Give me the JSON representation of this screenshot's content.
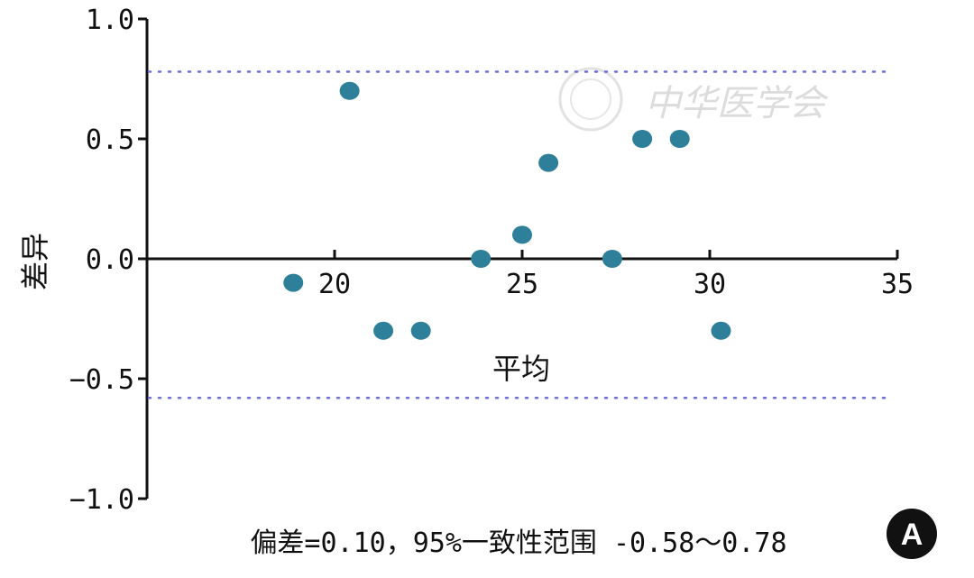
{
  "chart_data": {
    "type": "scatter",
    "title": "",
    "xlabel": "平均",
    "ylabel": "差异",
    "xlim": [
      15,
      35
    ],
    "ylim": [
      -1.0,
      1.0
    ],
    "x_ticks": [
      20,
      25,
      30,
      35
    ],
    "y_ticks": [
      1.0,
      0.5,
      0.0,
      -0.5,
      -1.0
    ],
    "x_tick_labels": [
      "20",
      "25",
      "30",
      "35"
    ],
    "y_tick_labels": [
      "1.0",
      "0.5",
      "0.0",
      "−0.5",
      "−1.0"
    ],
    "grid": false,
    "points": [
      {
        "x": 18.9,
        "y": -0.1
      },
      {
        "x": 20.4,
        "y": 0.7
      },
      {
        "x": 21.3,
        "y": -0.3
      },
      {
        "x": 22.3,
        "y": -0.3
      },
      {
        "x": 23.9,
        "y": 0.0
      },
      {
        "x": 25.0,
        "y": 0.1
      },
      {
        "x": 25.7,
        "y": 0.4
      },
      {
        "x": 27.4,
        "y": 0.0
      },
      {
        "x": 28.2,
        "y": 0.5
      },
      {
        "x": 29.2,
        "y": 0.5
      },
      {
        "x": 30.3,
        "y": -0.3
      }
    ],
    "reference_lines": [
      {
        "y": 0.78,
        "style": "dotted"
      },
      {
        "y": -0.58,
        "style": "dotted"
      }
    ],
    "caption": "偏差=0.10，95%一致性范围 -0.58～0.78",
    "panel_label": "A",
    "colors": {
      "points": "#2e7f99",
      "reference": "#6b6fd6",
      "axis": "#111111"
    },
    "watermark": "中华医学会"
  }
}
